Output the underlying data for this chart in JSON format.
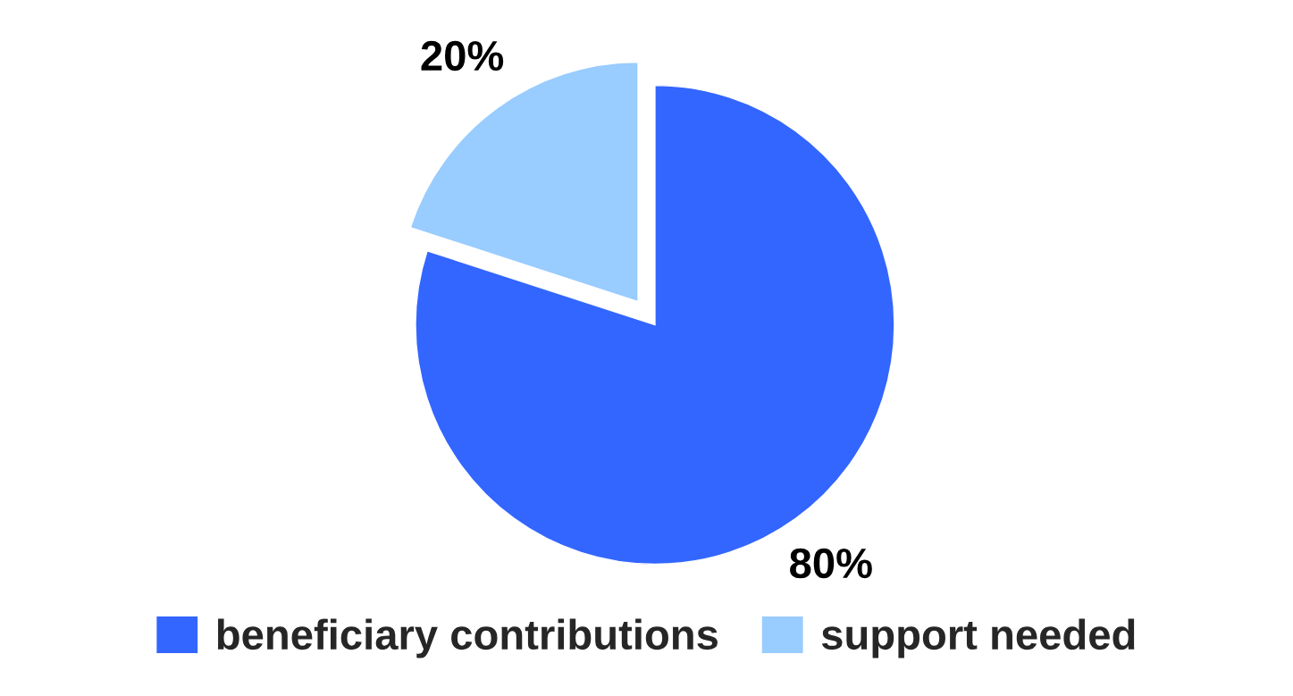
{
  "chart_data": {
    "type": "pie",
    "categories": [
      "beneficiary contributions",
      "support needed"
    ],
    "values": [
      80,
      20
    ],
    "colors": [
      "#3366ff",
      "#99ccff"
    ],
    "value_labels": [
      "80%",
      "20%"
    ],
    "legend": "bottom"
  }
}
